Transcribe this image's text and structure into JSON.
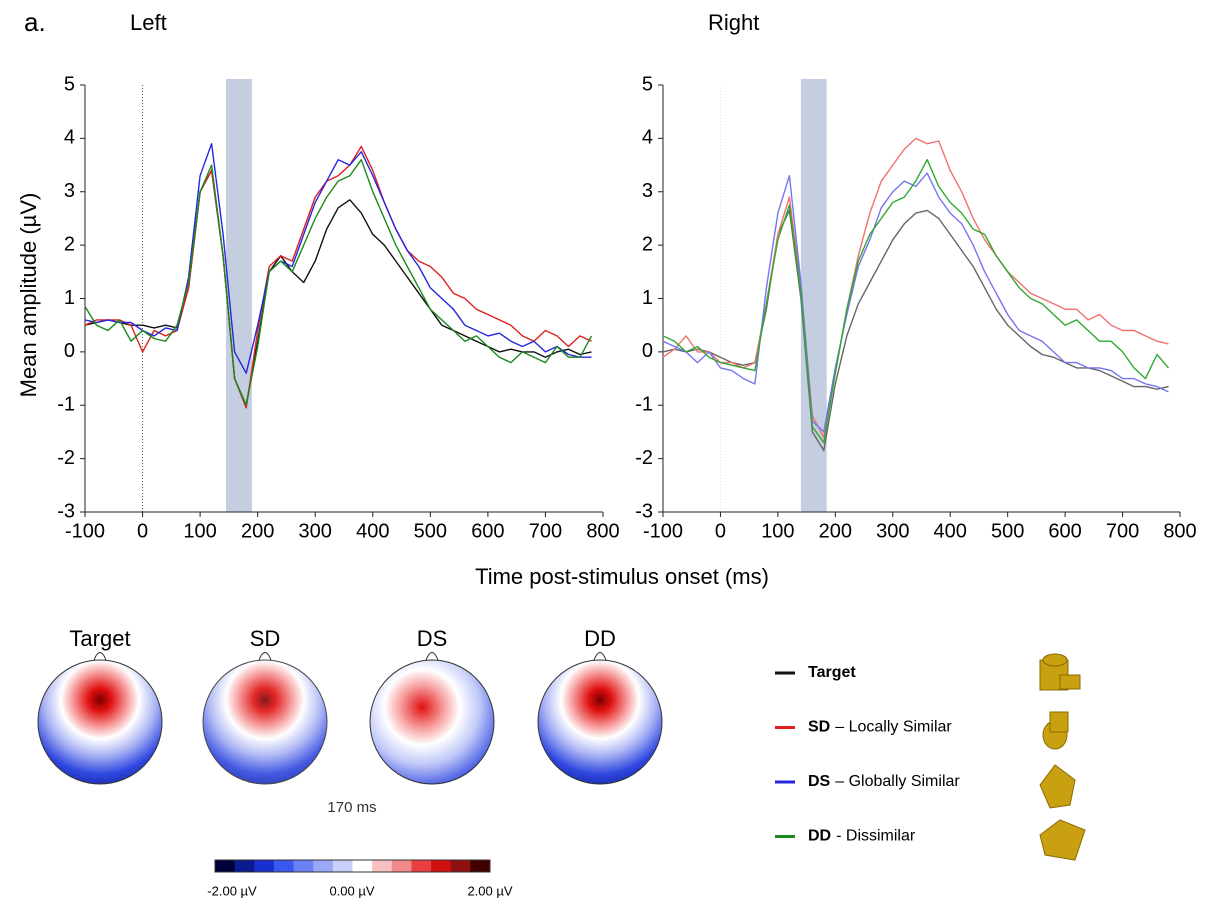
{
  "panel_label": "a.",
  "ylabel": "Mean amplitude (µV)",
  "xlabel": "Time post-stimulus onset (ms)",
  "chart_data": [
    {
      "type": "line",
      "title": "Left",
      "xlim": [
        -100,
        800
      ],
      "ylim": [
        -3,
        5
      ],
      "xticks": [
        -100,
        0,
        100,
        200,
        300,
        400,
        500,
        600,
        700,
        800
      ],
      "yticks": [
        -3,
        -2,
        -1,
        0,
        1,
        2,
        3,
        4,
        5
      ],
      "shaded_interval": [
        145,
        190
      ],
      "reference_x": 0,
      "x": [
        -100,
        -80,
        -60,
        -40,
        -20,
        0,
        20,
        40,
        60,
        80,
        100,
        120,
        140,
        160,
        180,
        200,
        220,
        240,
        260,
        280,
        300,
        320,
        340,
        360,
        380,
        400,
        420,
        440,
        460,
        480,
        500,
        520,
        540,
        560,
        580,
        600,
        620,
        640,
        660,
        680,
        700,
        720,
        740,
        760,
        780
      ],
      "series": [
        {
          "name": "Target",
          "color": "#111111",
          "values": [
            0.5,
            0.55,
            0.6,
            0.55,
            0.5,
            0.5,
            0.45,
            0.5,
            0.45,
            1.2,
            3.0,
            3.4,
            1.8,
            -0.5,
            -1.0,
            0.2,
            1.5,
            1.8,
            1.5,
            1.3,
            1.7,
            2.3,
            2.7,
            2.85,
            2.6,
            2.2,
            2.0,
            1.7,
            1.4,
            1.1,
            0.8,
            0.5,
            0.4,
            0.3,
            0.2,
            0.1,
            0.0,
            0.05,
            0.0,
            0.0,
            -0.1,
            0.0,
            0.05,
            -0.05,
            0.0
          ]
        },
        {
          "name": "SD",
          "color": "#e02020",
          "values": [
            0.5,
            0.6,
            0.6,
            0.6,
            0.5,
            0.0,
            0.4,
            0.3,
            0.4,
            1.2,
            3.0,
            3.4,
            1.8,
            -0.5,
            -1.05,
            0.4,
            1.6,
            1.8,
            1.7,
            2.3,
            2.9,
            3.2,
            3.3,
            3.5,
            3.85,
            3.4,
            2.8,
            2.3,
            1.9,
            1.7,
            1.6,
            1.4,
            1.1,
            1.0,
            0.8,
            0.7,
            0.6,
            0.5,
            0.3,
            0.2,
            0.4,
            0.3,
            0.1,
            0.3,
            0.2
          ]
        },
        {
          "name": "DS",
          "color": "#2626e0",
          "values": [
            0.6,
            0.55,
            0.6,
            0.55,
            0.55,
            0.4,
            0.3,
            0.45,
            0.4,
            1.4,
            3.3,
            3.9,
            2.2,
            0.0,
            -0.4,
            0.5,
            1.5,
            1.7,
            1.6,
            2.2,
            2.8,
            3.2,
            3.6,
            3.5,
            3.75,
            3.3,
            2.8,
            2.3,
            1.9,
            1.6,
            1.2,
            1.0,
            0.8,
            0.5,
            0.4,
            0.3,
            0.35,
            0.2,
            0.1,
            0.2,
            0.0,
            0.1,
            -0.05,
            -0.1,
            -0.1
          ]
        },
        {
          "name": "DD",
          "color": "#1a8a1a",
          "values": [
            0.85,
            0.5,
            0.4,
            0.6,
            0.2,
            0.4,
            0.25,
            0.2,
            0.5,
            1.3,
            3.0,
            3.5,
            1.8,
            -0.5,
            -1.0,
            0.1,
            1.5,
            1.7,
            1.5,
            2.0,
            2.5,
            2.9,
            3.2,
            3.3,
            3.6,
            3.0,
            2.5,
            2.0,
            1.6,
            1.2,
            0.8,
            0.6,
            0.4,
            0.2,
            0.3,
            0.1,
            -0.1,
            -0.2,
            0.0,
            -0.1,
            -0.2,
            0.1,
            -0.1,
            -0.1,
            0.3
          ]
        }
      ]
    },
    {
      "type": "line",
      "title": "Right",
      "xlim": [
        -100,
        800
      ],
      "ylim": [
        -3,
        5
      ],
      "xticks": [
        -100,
        0,
        100,
        200,
        300,
        400,
        500,
        600,
        700,
        800
      ],
      "yticks": [
        -3,
        -2,
        -1,
        0,
        1,
        2,
        3,
        4,
        5
      ],
      "shaded_interval": [
        140,
        185
      ],
      "reference_x": 0,
      "x": [
        -100,
        -80,
        -60,
        -40,
        -20,
        0,
        20,
        40,
        60,
        80,
        100,
        120,
        140,
        160,
        180,
        200,
        220,
        240,
        260,
        280,
        300,
        320,
        340,
        360,
        380,
        400,
        420,
        440,
        460,
        480,
        500,
        520,
        540,
        560,
        580,
        600,
        620,
        640,
        660,
        680,
        700,
        720,
        740,
        760,
        780
      ],
      "series": [
        {
          "name": "Target",
          "color": "#666666",
          "values": [
            0.0,
            0.05,
            0.0,
            0.05,
            0.0,
            -0.1,
            -0.2,
            -0.25,
            -0.2,
            0.8,
            2.2,
            2.65,
            1.0,
            -1.5,
            -1.85,
            -0.6,
            0.3,
            0.9,
            1.3,
            1.7,
            2.1,
            2.4,
            2.6,
            2.65,
            2.5,
            2.2,
            1.9,
            1.6,
            1.2,
            0.8,
            0.5,
            0.3,
            0.1,
            -0.05,
            -0.1,
            -0.2,
            -0.3,
            -0.3,
            -0.35,
            -0.45,
            -0.55,
            -0.65,
            -0.65,
            -0.7,
            -0.65
          ]
        },
        {
          "name": "SD",
          "color": "#f07070",
          "values": [
            -0.1,
            0.05,
            0.3,
            0.0,
            0.0,
            -0.2,
            -0.2,
            -0.3,
            -0.2,
            0.9,
            2.2,
            2.9,
            1.2,
            -1.2,
            -1.6,
            -0.4,
            0.8,
            1.8,
            2.6,
            3.2,
            3.5,
            3.8,
            4.0,
            3.9,
            3.95,
            3.4,
            3.0,
            2.5,
            2.1,
            1.8,
            1.5,
            1.3,
            1.1,
            1.0,
            0.9,
            0.8,
            0.8,
            0.6,
            0.7,
            0.5,
            0.4,
            0.4,
            0.3,
            0.2,
            0.15
          ]
        },
        {
          "name": "DS",
          "color": "#7474f0",
          "values": [
            0.2,
            0.1,
            0.0,
            -0.2,
            0.0,
            -0.3,
            -0.35,
            -0.5,
            -0.6,
            1.2,
            2.6,
            3.3,
            1.3,
            -1.3,
            -1.5,
            -0.3,
            0.7,
            1.6,
            2.1,
            2.7,
            3.0,
            3.2,
            3.1,
            3.35,
            2.9,
            2.6,
            2.4,
            2.0,
            1.5,
            1.1,
            0.7,
            0.4,
            0.3,
            0.2,
            0.0,
            -0.2,
            -0.2,
            -0.3,
            -0.3,
            -0.35,
            -0.5,
            -0.5,
            -0.6,
            -0.65,
            -0.75
          ]
        },
        {
          "name": "DD",
          "color": "#30a830",
          "values": [
            0.3,
            0.2,
            0.0,
            0.1,
            -0.1,
            -0.2,
            -0.25,
            -0.3,
            -0.35,
            0.9,
            2.1,
            2.75,
            1.1,
            -1.4,
            -1.7,
            -0.4,
            0.8,
            1.7,
            2.2,
            2.5,
            2.8,
            2.9,
            3.2,
            3.6,
            3.1,
            2.8,
            2.6,
            2.3,
            2.2,
            1.8,
            1.5,
            1.2,
            1.0,
            0.9,
            0.7,
            0.5,
            0.6,
            0.4,
            0.2,
            0.2,
            0.0,
            -0.3,
            -0.5,
            -0.05,
            -0.3
          ]
        }
      ]
    }
  ],
  "legend": {
    "descriptions": [
      null,
      "– Locally Similar",
      "– Globally Similar",
      "- Dissimilar"
    ]
  },
  "topomaps": {
    "labels": [
      "Target",
      "SD",
      "DS",
      "DD"
    ],
    "time": "170 ms",
    "colorbar_labels": [
      "-2.00 µV",
      "0.00 µV",
      "2.00 µV"
    ]
  }
}
